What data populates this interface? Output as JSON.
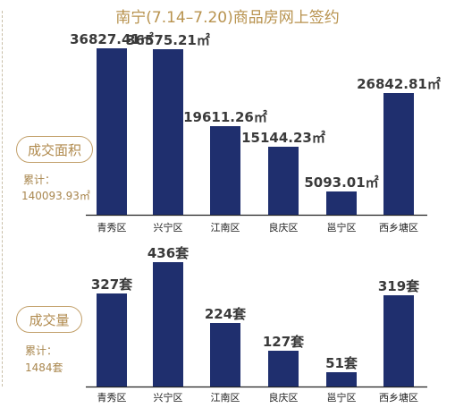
{
  "title": "南宁(7.14–7.20)商品房网上签约",
  "colors": {
    "bar": "#1f2f6e",
    "value_label": "#3a3a3a",
    "accent": "#b8934f",
    "axis": "#222222"
  },
  "panels": [
    {
      "pill_label": "成交面积",
      "total_label": "累计：",
      "total_value": "140093.93㎡"
    },
    {
      "pill_label": "成交量",
      "total_label": "累计：",
      "total_value": "1484套"
    }
  ],
  "chart_data": [
    {
      "type": "bar",
      "categories": [
        "青秀区",
        "兴宁区",
        "江南区",
        "良庆区",
        "邕宁区",
        "西乡塘区"
      ],
      "values": [
        36827.41,
        36575.21,
        19611.26,
        15144.23,
        5093.01,
        26842.81
      ],
      "value_labels": [
        "36827.41㎡",
        "36575.21㎡",
        "19611.26㎡",
        "15144.23㎡",
        "5093.01㎡",
        "26842.81㎡"
      ],
      "unit": "㎡",
      "ylim": [
        0,
        36827.41
      ],
      "grid": false,
      "legend": "none"
    },
    {
      "type": "bar",
      "categories": [
        "青秀区",
        "兴宁区",
        "江南区",
        "良庆区",
        "邕宁区",
        "西乡塘区"
      ],
      "values": [
        327,
        436,
        224,
        127,
        51,
        319
      ],
      "value_labels": [
        "327套",
        "436套",
        "224套",
        "127套",
        "51套",
        "319套"
      ],
      "unit": "套",
      "ylim": [
        0,
        436
      ],
      "grid": false,
      "legend": "none"
    }
  ]
}
